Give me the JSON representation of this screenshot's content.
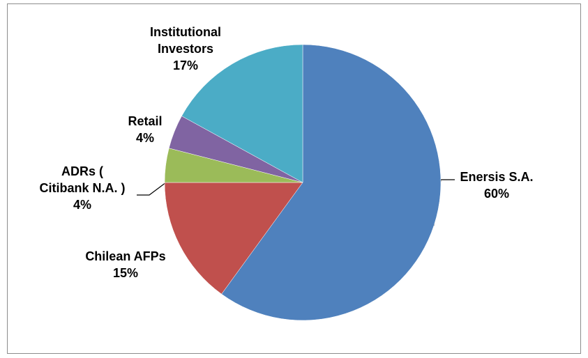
{
  "chart_data": {
    "type": "pie",
    "categories": [
      "Enersis S.A.",
      "Chilean AFPs",
      "ADRs ( Citibank N.A. )",
      "Retail",
      "Institutional Investors"
    ],
    "values": [
      60,
      15,
      4,
      4,
      17
    ],
    "value_labels": [
      "60%",
      "15%",
      "4%",
      "4%",
      "17%"
    ],
    "colors": [
      "#4f81bd",
      "#c0504d",
      "#9bbb59",
      "#8064a2",
      "#4bacc6"
    ]
  }
}
